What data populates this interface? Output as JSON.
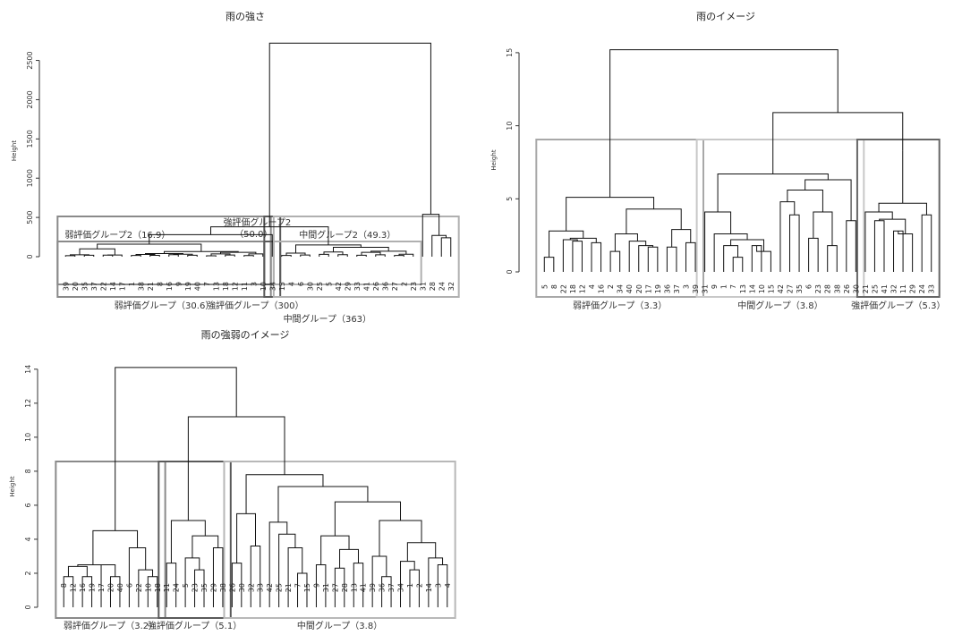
{
  "chart_data": [
    {
      "type": "dendrogram",
      "title": "雨の強さ",
      "ylabel": "Height",
      "ylim": [
        -400,
        2700
      ],
      "yticks": [
        0,
        500,
        1000,
        1500,
        2000,
        2500
      ],
      "grid": false,
      "leaves": [
        "39",
        "20",
        "35",
        "37",
        "22",
        "14",
        "17",
        "1",
        "38",
        "21",
        "8",
        "16",
        "9",
        "19",
        "40",
        "7",
        "13",
        "18",
        "12",
        "11",
        "3",
        "10",
        "34",
        "15",
        "4",
        "6",
        "30",
        "25",
        "5",
        "42",
        "29",
        "33",
        "41",
        "26",
        "36",
        "27",
        "2",
        "23",
        "31",
        "28",
        "24",
        "32"
      ],
      "merges": [
        [
          0,
          1,
          13
        ],
        [
          2,
          3,
          18
        ],
        [
          4,
          5,
          20
        ],
        [
          6,
          "m2",
          22
        ],
        [
          "m0",
          "m1",
          24
        ],
        [
          "m3",
          "m4",
          100
        ],
        [
          7,
          8,
          15
        ],
        [
          9,
          10,
          17
        ],
        [
          11,
          12,
          25
        ],
        [
          13,
          14,
          19
        ],
        [
          "m6",
          "m7",
          28
        ],
        [
          "m8",
          "m9",
          32
        ],
        [
          "m10",
          "m11",
          40
        ],
        [
          15,
          16,
          12
        ],
        [
          17,
          18,
          21
        ],
        [
          19,
          20,
          14
        ],
        [
          "m13",
          "m14",
          36
        ],
        [
          "m15",
          21,
          35
        ],
        [
          "m16",
          "m17",
          55
        ],
        [
          "m12",
          "m18",
          65
        ],
        [
          "m5",
          "m19",
          160
        ],
        [
          23,
          24,
          16
        ],
        [
          25,
          26,
          22
        ],
        [
          "m21",
          "m22",
          45
        ],
        [
          27,
          28,
          30
        ],
        [
          29,
          30,
          26
        ],
        [
          "m24",
          "m25",
          60
        ],
        [
          31,
          32,
          18
        ],
        [
          33,
          34,
          24
        ],
        [
          "m27",
          "m28",
          55
        ],
        [
          35,
          36,
          15
        ],
        [
          37,
          "m30",
          32
        ],
        [
          "m29",
          "m31",
          70
        ],
        [
          "m26",
          "m32",
          120
        ],
        [
          "m23",
          "m33",
          150
        ],
        [
          "m20",
          22,
          280
        ],
        [
          "m35",
          "m34",
          380
        ],
        [
          40,
          41,
          240
        ],
        [
          39,
          "m37",
          270
        ],
        [
          38,
          "m38",
          540
        ],
        [
          "m36",
          "m39",
          2720
        ]
      ],
      "groups": [
        {
          "label": "弱評価グループ（30.6）",
          "leaves": [
            0,
            21
          ],
          "color": "#8a8a8a"
        },
        {
          "label": "強評価グループ（300）",
          "leaves": [
            22,
            22
          ],
          "color": "#5a5a5a"
        },
        {
          "label": "中間グループ（363）",
          "leaves": [
            23,
            41
          ],
          "color": "#b0b0b0"
        }
      ],
      "subgroups": [
        {
          "label": "弱評価グループ2（16.9）",
          "leaves": [
            0,
            21
          ],
          "color": "#8a8a8a"
        },
        {
          "label": "強評価グループ2",
          "label2": "（50.0）",
          "leaves": [
            22,
            22
          ],
          "color": "#5a5a5a"
        },
        {
          "label": "中間グループ2（49.3）",
          "leaves": [
            23,
            37
          ],
          "color": "#b0b0b0"
        }
      ]
    },
    {
      "type": "dendrogram",
      "title": "雨のイメージ",
      "ylabel": "Height",
      "ylim": [
        -1.6,
        15.3
      ],
      "yticks": [
        0,
        5,
        10,
        15
      ],
      "grid": false,
      "leaves": [
        "5",
        "8",
        "22",
        "18",
        "12",
        "4",
        "16",
        "2",
        "34",
        "40",
        "20",
        "17",
        "19",
        "36",
        "37",
        "3",
        "39",
        "31",
        "9",
        "1",
        "7",
        "13",
        "14",
        "10",
        "15",
        "42",
        "27",
        "35",
        "6",
        "23",
        "28",
        "38",
        "26",
        "30",
        "21",
        "25",
        "41",
        "32",
        "11",
        "29",
        "24",
        "33"
      ],
      "merges": [
        [
          0,
          1,
          1.0
        ],
        [
          3,
          4,
          2.1
        ],
        [
          2,
          "m1",
          2.2
        ],
        [
          5,
          6,
          2.0
        ],
        [
          "m2",
          "m3",
          2.3
        ],
        [
          "m0",
          "m4",
          2.8
        ],
        [
          7,
          8,
          1.4
        ],
        [
          11,
          12,
          1.7
        ],
        [
          10,
          "m7",
          1.8
        ],
        [
          9,
          "m8",
          2.1
        ],
        [
          "m6",
          "m9",
          2.6
        ],
        [
          13,
          14,
          1.7
        ],
        [
          15,
          16,
          2.0
        ],
        [
          "m11",
          "m12",
          2.9
        ],
        [
          "m10",
          "m13",
          4.3
        ],
        [
          "m5",
          "m14",
          5.1
        ],
        [
          20,
          21,
          1.0
        ],
        [
          19,
          "m16",
          1.8
        ],
        [
          22,
          23,
          1.8
        ],
        [
          24,
          "m18",
          1.4
        ],
        [
          "m17",
          "m19",
          2.2
        ],
        [
          18,
          "m20",
          2.6
        ],
        [
          17,
          "m21",
          4.1
        ],
        [
          26,
          27,
          3.9
        ],
        [
          25,
          "m23",
          4.8
        ],
        [
          28,
          29,
          2.3
        ],
        [
          30,
          31,
          1.8
        ],
        [
          "m25",
          "m26",
          4.1
        ],
        [
          "m24",
          "m27",
          5.6
        ],
        [
          32,
          33,
          3.5
        ],
        [
          "m28",
          "m29",
          6.3
        ],
        [
          "m22",
          "m30",
          6.7
        ],
        [
          35,
          36,
          3.5
        ],
        [
          37,
          38,
          2.8
        ],
        [
          39,
          "m33",
          2.6
        ],
        [
          "m32",
          "m34",
          3.6
        ],
        [
          34,
          "m35",
          4.1
        ],
        [
          40,
          41,
          3.9
        ],
        [
          "m36",
          "m37",
          4.7
        ],
        [
          "m38",
          8.3
        ],
        [
          "m31",
          "m39",
          10.9
        ],
        [
          "m15",
          "m40",
          15.2
        ]
      ],
      "groups": [
        {
          "label": "弱評価グループ（3.3）",
          "leaves": [
            0,
            16
          ],
          "color": "#a8a8a8"
        },
        {
          "label": "中間グループ（3.8）",
          "leaves": [
            17,
            33
          ],
          "color": "#c8c8c8"
        },
        {
          "label": "強評価グループ（5.3）",
          "leaves": [
            34,
            41
          ],
          "color": "#666666"
        }
      ]
    },
    {
      "type": "dendrogram",
      "title": "雨の強弱のイメージ",
      "ylabel": "Height",
      "ylim": [
        -1.0,
        14.2
      ],
      "yticks": [
        0,
        2,
        4,
        6,
        8,
        10,
        12,
        14
      ],
      "grid": false,
      "leaves": [
        "8",
        "12",
        "16",
        "19",
        "17",
        "20",
        "40",
        "6",
        "22",
        "10",
        "18",
        "11",
        "24",
        "5",
        "23",
        "35",
        "29",
        "38",
        "26",
        "30",
        "32",
        "33",
        "42",
        "25",
        "21",
        "7",
        "15",
        "9",
        "31",
        "27",
        "28",
        "13",
        "41",
        "39",
        "36",
        "37",
        "34",
        "1",
        "2",
        "14",
        "3",
        "4"
      ],
      "merges": [
        [
          0,
          1,
          1.8
        ],
        [
          2,
          3,
          1.8
        ],
        [
          "m0",
          "m1",
          2.4
        ],
        [
          5,
          6,
          1.8
        ],
        [
          4,
          "m3",
          2.5
        ],
        [
          "m2",
          "m4",
          2.5
        ],
        [
          9,
          10,
          1.8
        ],
        [
          8,
          "m6",
          2.2
        ],
        [
          7,
          "m7",
          3.5
        ],
        [
          "m5",
          "m8",
          4.5
        ],
        [
          11,
          12,
          2.6
        ],
        [
          14,
          15,
          2.2
        ],
        [
          13,
          "m11",
          2.9
        ],
        [
          16,
          17,
          3.5
        ],
        [
          "m12",
          "m13",
          4.2
        ],
        [
          "m10",
          "m14",
          5.1
        ],
        [
          18,
          19,
          2.6
        ],
        [
          20,
          21,
          3.6
        ],
        [
          "m16",
          "m17",
          5.5
        ],
        [
          25,
          26,
          2.0
        ],
        [
          24,
          "m19",
          3.5
        ],
        [
          23,
          "m20",
          4.3
        ],
        [
          22,
          "m21",
          5.0
        ],
        [
          27,
          28,
          2.5
        ],
        [
          29,
          30,
          2.3
        ],
        [
          31,
          32,
          2.6
        ],
        [
          "m24",
          "m25",
          3.4
        ],
        [
          "m23",
          "m26",
          4.2
        ],
        [
          34,
          35,
          1.8
        ],
        [
          33,
          "m28",
          3.0
        ],
        [
          37,
          38,
          2.2
        ],
        [
          36,
          "m30",
          2.7
        ],
        [
          40,
          41,
          2.5
        ],
        [
          39,
          "m32",
          2.9
        ],
        [
          "m31",
          "m33",
          3.8
        ],
        [
          "m29",
          "m34",
          5.1
        ],
        [
          "m27",
          "m35",
          6.2
        ],
        [
          "m22",
          "m36",
          7.1
        ],
        [
          "m18",
          "m37",
          7.8
        ],
        [
          "m15",
          "m38",
          11.2
        ],
        [
          "m9",
          "m39",
          14.1
        ]
      ],
      "groups": [
        {
          "label": "弱評価グループ（3.2）",
          "leaves": [
            0,
            10
          ],
          "color": "#8a8a8a"
        },
        {
          "label": "強評価グループ（5.1）",
          "leaves": [
            11,
            17
          ],
          "color": "#5a5a5a"
        },
        {
          "label": "中間グループ（3.8）",
          "leaves": [
            18,
            41
          ],
          "color": "#b8b8b8"
        }
      ]
    }
  ]
}
